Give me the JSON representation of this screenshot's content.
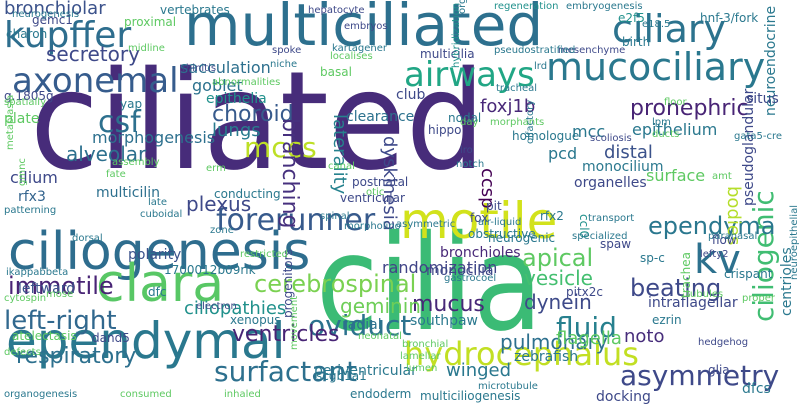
{
  "words": [
    {
      "text": "ciliated",
      "color": "#472c7a"
    },
    {
      "text": "cilia",
      "color": "#3bbb75"
    },
    {
      "text": "multiciliated",
      "color": "#2d708e"
    },
    {
      "text": "ciliogenesis",
      "color": "#2e6d8e"
    },
    {
      "text": "ependymal",
      "color": "#2a788e"
    },
    {
      "text": "motile",
      "color": "#d2e21b"
    },
    {
      "text": "clara",
      "color": "#58c765"
    },
    {
      "text": "kupffer",
      "color": "#2e6e8e"
    },
    {
      "text": "axonemal",
      "color": "#365c8d"
    },
    {
      "text": "ciliary",
      "color": "#2c738e"
    },
    {
      "text": "mucociliary",
      "color": "#2a788e"
    },
    {
      "text": "airways",
      "color": "#21a685"
    },
    {
      "text": "hydrocephalus",
      "color": "#c2df23"
    },
    {
      "text": "forerunner",
      "color": "#375a8c"
    },
    {
      "text": "left-right",
      "color": "#31688e"
    },
    {
      "text": "ciliogenic",
      "color": "#40bd72"
    },
    {
      "text": "kv",
      "color": "#2d718e"
    },
    {
      "text": "surfactant",
      "color": "#2d708e"
    },
    {
      "text": "asymmetry",
      "color": "#3e4989"
    },
    {
      "text": "fluid",
      "color": "#27808e"
    },
    {
      "text": "oviduct",
      "color": "#2c728e"
    },
    {
      "text": "respiratory",
      "color": "#2d708e"
    },
    {
      "text": "immotile",
      "color": "#482475"
    },
    {
      "text": "cerebrospinal",
      "color": "#7ad151"
    },
    {
      "text": "ependyma",
      "color": "#2a778e"
    },
    {
      "text": "mccs",
      "color": "#bddf26"
    },
    {
      "text": "csf",
      "color": "#2d708e"
    },
    {
      "text": "beating",
      "color": "#3e4989"
    },
    {
      "text": "pronephric",
      "color": "#482475"
    },
    {
      "text": "bronchiolar",
      "color": "#3b528b"
    },
    {
      "text": "secretory",
      "color": "#3e4989"
    },
    {
      "text": "choroid",
      "color": "#375a8c"
    },
    {
      "text": "lungs",
      "color": "#297b8e"
    },
    {
      "text": "alveolar",
      "color": "#2d708e"
    },
    {
      "text": "apical",
      "color": "#5ec962"
    },
    {
      "text": "mucus",
      "color": "#482878"
    },
    {
      "text": "dynein",
      "color": "#3e4a89"
    },
    {
      "text": "vesicle",
      "color": "#44bf70"
    },
    {
      "text": "ventricles",
      "color": "#482475"
    },
    {
      "text": "pulmonary",
      "color": "#2d708e"
    },
    {
      "text": "plexus",
      "color": "#3e4989"
    },
    {
      "text": "ciliopathies",
      "color": "#21918c"
    },
    {
      "text": "geminin",
      "color": "#6ece58"
    },
    {
      "text": "branching",
      "color": "#46307e"
    },
    {
      "text": "laterality",
      "color": "#26828e"
    },
    {
      "text": "dyskinesia",
      "color": "#3e4989"
    },
    {
      "text": "foxj1b",
      "color": "#482878"
    },
    {
      "text": "flagella",
      "color": "#5ec962"
    },
    {
      "text": "noto",
      "color": "#472d7b"
    },
    {
      "text": "winged",
      "color": "#2a788e"
    },
    {
      "text": "mcc",
      "color": "#2a788e"
    },
    {
      "text": "distal",
      "color": "#3b528b"
    },
    {
      "text": "goblet",
      "color": "#2c728e"
    },
    {
      "text": "epithelium",
      "color": "#2a788e"
    },
    {
      "text": "sacculation",
      "color": "#2d708e"
    },
    {
      "text": "epithelia",
      "color": "#21918c"
    },
    {
      "text": "morphogenesis",
      "color": "#2d708e"
    },
    {
      "text": "clearance",
      "color": "#2c728e"
    },
    {
      "text": "bronchioles",
      "color": "#482878"
    },
    {
      "text": "randomization",
      "color": "#414487"
    },
    {
      "text": "ccsp",
      "color": "#440154"
    },
    {
      "text": "pcd",
      "color": "#2a788e"
    },
    {
      "text": "cilium",
      "color": "#3e4989"
    },
    {
      "text": "rfx3",
      "color": "#33638d"
    },
    {
      "text": "leftward",
      "color": "#3b528b"
    },
    {
      "text": "polarity",
      "color": "#3b528b"
    },
    {
      "text": "multicilin",
      "color": "#2d708e"
    },
    {
      "text": "ventricular",
      "color": "#3e4989"
    },
    {
      "text": "postnatal",
      "color": "#3e4989"
    },
    {
      "text": "neurogenic",
      "color": "#2a788e"
    },
    {
      "text": "radial",
      "color": "#2d708e"
    },
    {
      "text": "zebrafish",
      "color": "#2a788e"
    },
    {
      "text": "southpaw",
      "color": "#2a788e"
    },
    {
      "text": "periventricular",
      "color": "#2a788e"
    },
    {
      "text": "endoderm",
      "color": "#2a788e"
    },
    {
      "text": "scgb1a1",
      "color": "#2a788e"
    },
    {
      "text": "docking",
      "color": "#3e4989"
    },
    {
      "text": "multiciliogenesis",
      "color": "#2a788e"
    },
    {
      "text": "microtubule",
      "color": "#2a788e"
    },
    {
      "text": "dfcs",
      "color": "#2a788e"
    },
    {
      "text": "centrioles",
      "color": "#2a788e"
    },
    {
      "text": "glia",
      "color": "#3e4989"
    },
    {
      "text": "monocilia",
      "color": "#3e4989"
    },
    {
      "text": "monocilium",
      "color": "#2a788e"
    },
    {
      "text": "surface",
      "color": "#5ec962"
    },
    {
      "text": "organelles",
      "color": "#3e4989"
    },
    {
      "text": "homologue",
      "color": "#2a788e"
    },
    {
      "text": "bodies",
      "color": "#b5de2b"
    },
    {
      "text": "pseudoglandular",
      "color": "#3e4989"
    },
    {
      "text": "neuroendocrine",
      "color": "#2a788e"
    },
    {
      "text": "situs",
      "color": "#3e4989"
    },
    {
      "text": "birth",
      "color": "#2a788e"
    },
    {
      "text": "hnf-3/fork",
      "color": "#2a788e"
    },
    {
      "text": "e2f5",
      "color": "#21918c"
    },
    {
      "text": "nodal",
      "color": "#2a788e"
    },
    {
      "text": "hippo",
      "color": "#3e4989"
    },
    {
      "text": "tracheal",
      "color": "#2a788e"
    },
    {
      "text": "lrd",
      "color": "#2a788e"
    },
    {
      "text": "morphants",
      "color": "#5ec962"
    },
    {
      "text": "mesenchyme",
      "color": "#3e4989"
    },
    {
      "text": "pseudostratified",
      "color": "#2a788e"
    },
    {
      "text": "regeneration",
      "color": "#21918c"
    },
    {
      "text": "embryogenesis",
      "color": "#2a788e"
    },
    {
      "text": "e18.5",
      "color": "#2a788e"
    },
    {
      "text": "hepatocyte",
      "color": "#3e4989"
    },
    {
      "text": "organ",
      "color": "#2a788e"
    },
    {
      "text": "embryos",
      "color": "#3e4989"
    },
    {
      "text": "kartagener",
      "color": "#2a788e"
    },
    {
      "text": "spoke",
      "color": "#3e4989"
    },
    {
      "text": "niche",
      "color": "#2a788e"
    },
    {
      "text": "rhinitis",
      "color": "#3e4989"
    },
    {
      "text": "abnormalities",
      "color": "#5ec962"
    },
    {
      "text": "basal",
      "color": "#5ec962"
    },
    {
      "text": "club",
      "color": "#3e4989"
    },
    {
      "text": "multicilia",
      "color": "#3e4989"
    },
    {
      "text": "hybridization",
      "color": "#21918c"
    },
    {
      "text": "lro",
      "color": "#3e4989"
    },
    {
      "text": "notch",
      "color": "#2a788e"
    },
    {
      "text": "olfactory",
      "color": "#2a788e"
    },
    {
      "text": "scoliosis",
      "color": "#3e4989"
    },
    {
      "text": "lpm",
      "color": "#2a788e"
    },
    {
      "text": "ducts",
      "color": "#5ec962"
    },
    {
      "text": "fox",
      "color": "#3e4989"
    },
    {
      "text": "pit",
      "color": "#3e4989"
    },
    {
      "text": "rfx2",
      "color": "#2a788e"
    },
    {
      "text": "obstructive",
      "color": "#2a788e"
    },
    {
      "text": "air-liquid",
      "color": "#2a788e"
    },
    {
      "text": "ccl0",
      "color": "#21918c"
    },
    {
      "text": "spaw",
      "color": "#3e4989"
    },
    {
      "text": "flow",
      "color": "#3e4989"
    },
    {
      "text": "sp-c",
      "color": "#2a788e"
    },
    {
      "text": "crispant",
      "color": "#2a788e"
    },
    {
      "text": "lefty2",
      "color": "#3e4989"
    },
    {
      "text": "paranasal",
      "color": "#2a788e"
    },
    {
      "text": "intraflagellar",
      "color": "#3e4989"
    },
    {
      "text": "ezrin",
      "color": "#2a788e"
    },
    {
      "text": "trachea",
      "color": "#5ec962"
    },
    {
      "text": "hedgehog",
      "color": "#3e4989"
    },
    {
      "text": "pitx2c",
      "color": "#3e4989"
    },
    {
      "text": "gastrocoel",
      "color": "#2a788e"
    },
    {
      "text": "1700012b09rik",
      "color": "#2a788e"
    },
    {
      "text": "dfc",
      "color": "#2a788e"
    },
    {
      "text": "xenopus",
      "color": "#2a788e"
    },
    {
      "text": "ikappabbeta",
      "color": "#2a788e"
    },
    {
      "text": "atelectasis",
      "color": "#5ec962"
    },
    {
      "text": "dand5",
      "color": "#3e4989"
    },
    {
      "text": "progenitors",
      "color": "#3e4989"
    },
    {
      "text": "conducting",
      "color": "#2a788e"
    },
    {
      "text": "canal",
      "color": "#5ec962"
    },
    {
      "text": "spinal",
      "color": "#2a788e"
    },
    {
      "text": "morpholino",
      "color": "#2a788e"
    },
    {
      "text": "transport",
      "color": "#2a788e"
    },
    {
      "text": "specialized",
      "color": "#2a788e"
    },
    {
      "text": "yap",
      "color": "#2a788e"
    },
    {
      "text": "g.1805g",
      "color": "#3e4989"
    },
    {
      "text": "plate",
      "color": "#5ec962"
    },
    {
      "text": "charon",
      "color": "#2a788e"
    },
    {
      "text": "gemc1",
      "color": "#3e4989"
    },
    {
      "text": "proximal",
      "color": "#5ec962"
    },
    {
      "text": "vertebrates",
      "color": "#2a788e"
    },
    {
      "text": "midline",
      "color": "#5ec962"
    },
    {
      "text": "spatially",
      "color": "#5ec962"
    },
    {
      "text": "metaplasia",
      "color": "#5ec962"
    },
    {
      "text": "gmnc",
      "color": "#5ec962"
    },
    {
      "text": "patterning",
      "color": "#2a788e"
    },
    {
      "text": "mose",
      "color": "#5ec962"
    },
    {
      "text": "defects",
      "color": "#5ec962"
    },
    {
      "text": "cytospin",
      "color": "#5ec962"
    },
    {
      "text": "organogenesis",
      "color": "#2a788e"
    },
    {
      "text": "neurogenesis",
      "color": "#2a788e"
    },
    {
      "text": "electron",
      "color": "#3e4989"
    },
    {
      "text": "restricted",
      "color": "#5ec962"
    },
    {
      "text": "zone",
      "color": "#2a788e"
    },
    {
      "text": "dorsal",
      "color": "#2a788e"
    },
    {
      "text": "erm",
      "color": "#5ec962"
    },
    {
      "text": "neonatal",
      "color": "#5ec962"
    },
    {
      "text": "bronchial",
      "color": "#5ec962"
    },
    {
      "text": "movement",
      "color": "#5ec962"
    },
    {
      "text": "inhaled",
      "color": "#5ec962"
    },
    {
      "text": "consumed",
      "color": "#5ec962"
    },
    {
      "text": "lamellar",
      "color": "#5ec962"
    },
    {
      "text": "otic",
      "color": "#5ec962"
    },
    {
      "text": "fate",
      "color": "#5ec962"
    },
    {
      "text": "assembly",
      "color": "#5ec962"
    },
    {
      "text": "late",
      "color": "#2a788e"
    },
    {
      "text": "cuboidal",
      "color": "#2a788e"
    },
    {
      "text": "localises",
      "color": "#5ec962"
    },
    {
      "text": "floor",
      "color": "#5ec962"
    },
    {
      "text": "gata5-cre",
      "color": "#2a788e"
    },
    {
      "text": "amt",
      "color": "#5ec962"
    },
    {
      "text": "tubules",
      "color": "#5ec962"
    },
    {
      "text": "proper",
      "color": "#5ec962"
    },
    {
      "text": "neuroepithelial",
      "color": "#2a788e"
    },
    {
      "text": "day",
      "color": "#5ec962"
    },
    {
      "text": "asymmetric",
      "color": "#2a788e"
    },
    {
      "text": "lumen",
      "color": "#5ec962"
    }
  ]
}
